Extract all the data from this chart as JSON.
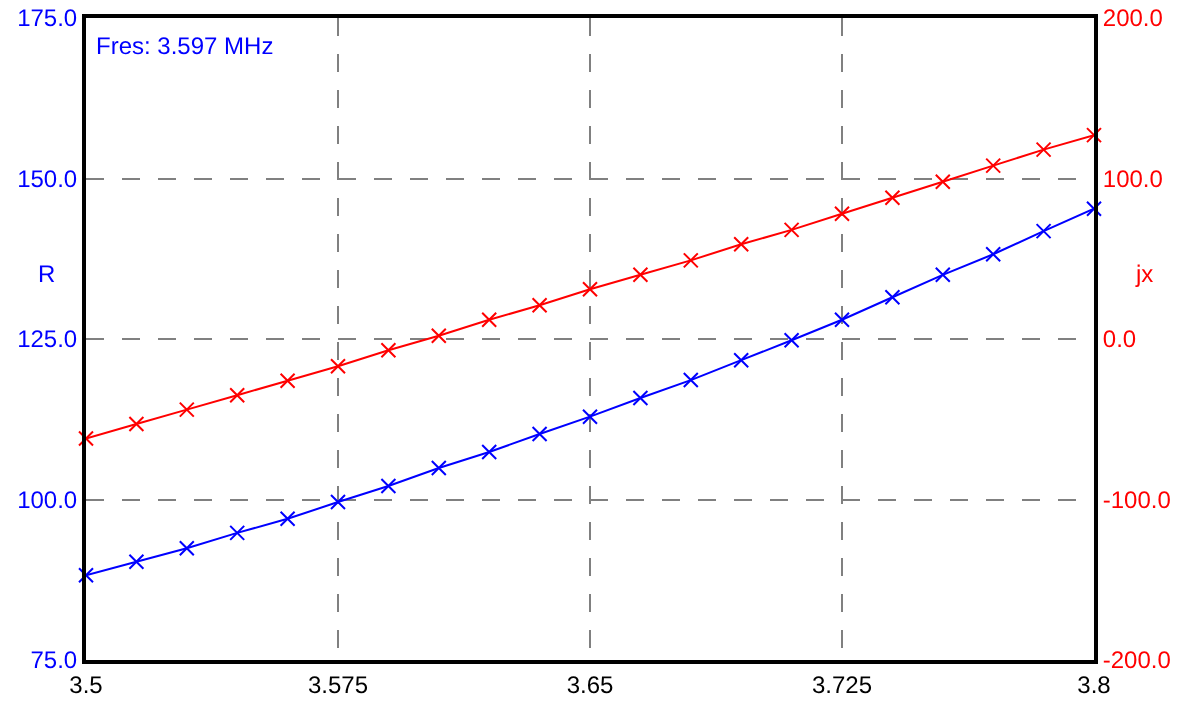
{
  "chart_data": {
    "type": "line",
    "ylabel": "R",
    "y2label": "jx",
    "annotations": [
      "Fres: 3.597 MHz"
    ],
    "x": [
      3.5,
      3.515,
      3.53,
      3.545,
      3.56,
      3.575,
      3.59,
      3.605,
      3.62,
      3.635,
      3.65,
      3.665,
      3.68,
      3.695,
      3.71,
      3.725,
      3.74,
      3.755,
      3.77,
      3.785,
      3.8
    ],
    "series": [
      {
        "color": "#0000ff",
        "values": [
          88.2,
          90.3,
          92.4,
          94.8,
          97.0,
          99.6,
          102.1,
          104.9,
          107.4,
          110.2,
          112.9,
          115.8,
          118.6,
          121.7,
          124.8,
          128.0,
          131.5,
          135.0,
          138.2,
          141.8,
          145.3
        ]
      },
      {
        "color": "#ff0000",
        "axis": "y2",
        "values": [
          -62,
          -53,
          -44,
          -35,
          -26,
          -17,
          -7,
          2,
          12,
          21,
          31,
          40,
          49,
          59,
          68,
          78,
          88,
          98,
          108,
          118,
          127
        ]
      }
    ],
    "xlim": [
      3.5,
      3.8
    ],
    "xticks": [
      3.5,
      3.575,
      3.65,
      3.725,
      3.8
    ],
    "ylim": [
      75,
      175
    ],
    "yticks": [
      {
        "value": 75,
        "label": "75.0"
      },
      {
        "value": 100,
        "label": "100.0"
      },
      {
        "value": 125,
        "label": "125.0"
      },
      {
        "value": 150,
        "label": "150.0"
      },
      {
        "value": 175,
        "label": "175.0"
      }
    ],
    "y2lim": [
      -200,
      200
    ],
    "y2ticks": [
      {
        "value": -200,
        "label": "-200.0"
      },
      {
        "value": -100,
        "label": "-100.0"
      },
      {
        "value": 0,
        "label": "0.0"
      },
      {
        "value": 100,
        "label": "100.0"
      },
      {
        "value": 200,
        "label": "200.0"
      }
    ],
    "grid": true,
    "marker": "cross",
    "line_style": "solid"
  }
}
